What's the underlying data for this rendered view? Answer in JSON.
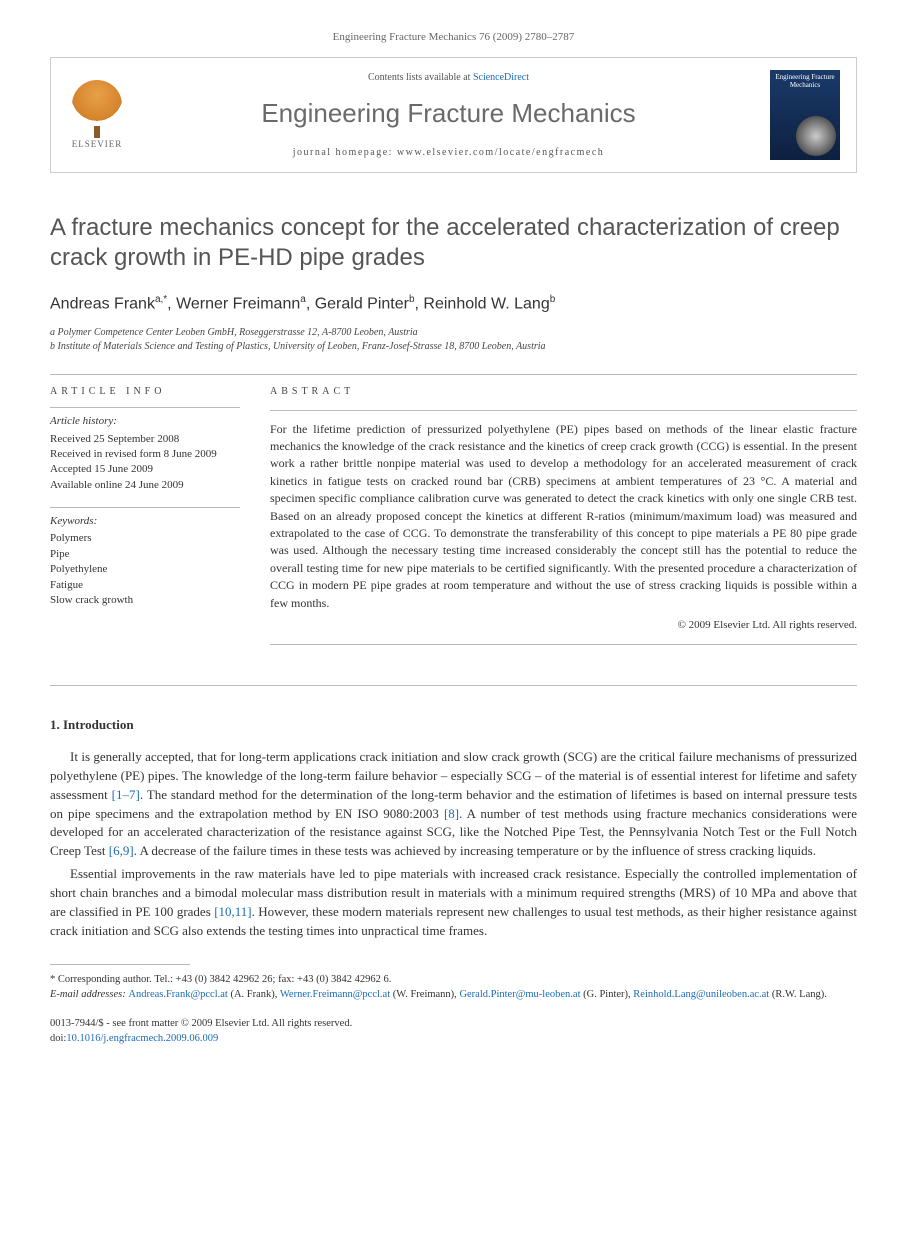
{
  "page_header": "Engineering Fracture Mechanics 76 (2009) 2780–2787",
  "journal_box": {
    "contents_prefix": "Contents lists available at ",
    "contents_link": "ScienceDirect",
    "journal_name": "Engineering Fracture Mechanics",
    "homepage_label": "journal homepage: www.elsevier.com/locate/engfracmech",
    "elsevier_label": "ELSEVIER",
    "cover_title": "Engineering Fracture Mechanics"
  },
  "article": {
    "title": "A fracture mechanics concept for the accelerated characterization of creep crack growth in PE-HD pipe grades",
    "authors_html": "Andreas Frank|a,*|, Werner Freimann|a|, Gerald Pinter|b|, Reinhold W. Lang|b|",
    "authors": [
      {
        "name": "Andreas Frank",
        "sup": "a,*"
      },
      {
        "name": "Werner Freimann",
        "sup": "a"
      },
      {
        "name": "Gerald Pinter",
        "sup": "b"
      },
      {
        "name": "Reinhold W. Lang",
        "sup": "b"
      }
    ],
    "affiliations": [
      "a Polymer Competence Center Leoben GmbH, Roseggerstrasse 12, A-8700 Leoben, Austria",
      "b Institute of Materials Science and Testing of Plastics, University of Leoben, Franz-Josef-Strasse 18, 8700 Leoben, Austria"
    ]
  },
  "info": {
    "section_label": "ARTICLE INFO",
    "history_title": "Article history:",
    "history": [
      "Received 25 September 2008",
      "Received in revised form 8 June 2009",
      "Accepted 15 June 2009",
      "Available online 24 June 2009"
    ],
    "keywords_title": "Keywords:",
    "keywords": [
      "Polymers",
      "Pipe",
      "Polyethylene",
      "Fatigue",
      "Slow crack growth"
    ]
  },
  "abstract": {
    "section_label": "ABSTRACT",
    "text": "For the lifetime prediction of pressurized polyethylene (PE) pipes based on methods of the linear elastic fracture mechanics the knowledge of the crack resistance and the kinetics of creep crack growth (CCG) is essential. In the present work a rather brittle nonpipe material was used to develop a methodology for an accelerated measurement of crack kinetics in fatigue tests on cracked round bar (CRB) specimens at ambient temperatures of 23 °C. A material and specimen specific compliance calibration curve was generated to detect the crack kinetics with only one single CRB test. Based on an already proposed concept the kinetics at different R-ratios (minimum/maximum load) was measured and extrapolated to the case of CCG. To demonstrate the transferability of this concept to pipe materials a PE 80 pipe grade was used. Although the necessary testing time increased considerably the concept still has the potential to reduce the overall testing time for new pipe materials to be certified significantly. With the presented procedure a characterization of CCG in modern PE pipe grades at room temperature and without the use of stress cracking liquids is possible within a few months.",
    "copyright": "© 2009 Elsevier Ltd. All rights reserved."
  },
  "introduction": {
    "heading": "1. Introduction",
    "para1_pre": "It is generally accepted, that for long-term applications crack initiation and slow crack growth (SCG) are the critical failure mechanisms of pressurized polyethylene (PE) pipes. The knowledge of the long-term failure behavior – especially SCG – of the material is of essential interest for lifetime and safety assessment ",
    "ref1": "[1–7]",
    "para1_mid1": ". The standard method for the determination of the long-term behavior and the estimation of lifetimes is based on internal pressure tests on pipe specimens and the extrapolation method by EN ISO 9080:2003 ",
    "ref2": "[8]",
    "para1_mid2": ". A number of test methods using fracture mechanics considerations were developed for an accelerated characterization of the resistance against SCG, like the Notched Pipe Test, the Pennsylvania Notch Test or the Full Notch Creep Test ",
    "ref3": "[6,9]",
    "para1_post": ". A decrease of the failure times in these tests was achieved by increasing temperature or by the influence of stress cracking liquids.",
    "para2_pre": "Essential improvements in the raw materials have led to pipe materials with increased crack resistance. Especially the controlled implementation of short chain branches and a bimodal molecular mass distribution result in materials with a minimum required strengths (MRS) of 10 MPa and above that are classified in PE 100 grades ",
    "ref4": "[10,11]",
    "para2_post": ". However, these modern materials represent new challenges to usual test methods, as their higher resistance against crack initiation and SCG also extends the testing times into unpractical time frames."
  },
  "footer": {
    "corresponding_label": "* Corresponding author. Tel.: +43 (0) 3842 42962 26; fax: +43 (0) 3842 42962 6.",
    "email_label": "E-mail addresses: ",
    "emails": [
      {
        "addr": "Andreas.Frank@pccl.at",
        "who": " (A. Frank), "
      },
      {
        "addr": "Werner.Freimann@pccl.at",
        "who": " (W. Freimann), "
      },
      {
        "addr": "Gerald.Pinter@mu-leoben.at",
        "who": " (G. Pinter), "
      },
      {
        "addr": "Reinhold.Lang@unileoben.ac.at",
        "who": " (R.W. Lang)."
      }
    ],
    "front_matter": "0013-7944/$ - see front matter © 2009 Elsevier Ltd. All rights reserved.",
    "doi_label": "doi:",
    "doi": "10.1016/j.engfracmech.2009.06.009"
  },
  "colors": {
    "link": "#1b6bb8",
    "title_gray": "#555555",
    "text": "#333333",
    "border": "#bbbbbb"
  }
}
